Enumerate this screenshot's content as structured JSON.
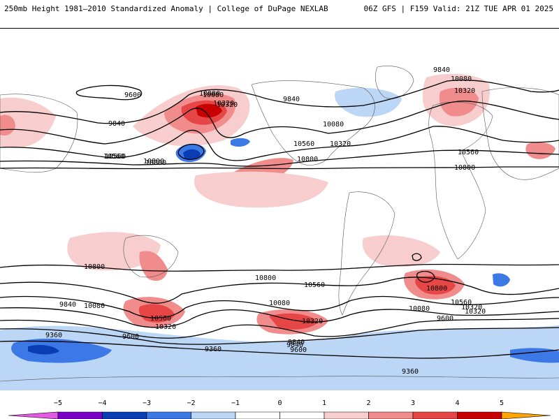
{
  "header": {
    "left_title": "250mb Height 1981–2010 Standardized Anomaly | College of DuPage NEXLAB",
    "right_title": "06Z GFS | F159 Valid: 21Z TUE APR 01 2025"
  },
  "colors": {
    "neg5": "#e15ae1",
    "neg4": "#7a00c8",
    "neg3": "#0a3cb4",
    "neg2": "#3c78e6",
    "neg1": "#bcd6f5",
    "pos1": "#f7cdcd",
    "pos2": "#f08c8c",
    "pos3": "#e64646",
    "pos4": "#c80000",
    "pos5": "#ffa500",
    "contour": "#000000",
    "land_border": "#555555"
  },
  "colorbar": {
    "tick_labels": [
      "−5",
      "−4",
      "−3",
      "−2",
      "−1",
      "0",
      "1",
      "2",
      "3",
      "4",
      "5"
    ]
  },
  "contour_labels": [
    {
      "text": "9840"
    },
    {
      "text": "10080"
    },
    {
      "text": "10320"
    },
    {
      "text": "9600"
    },
    {
      "text": "9840"
    },
    {
      "text": "10080"
    },
    {
      "text": "10320"
    },
    {
      "text": "10560"
    },
    {
      "text": "10800"
    },
    {
      "text": "9840"
    },
    {
      "text": "10080"
    },
    {
      "text": "10560"
    },
    {
      "text": "10320"
    },
    {
      "text": "10560"
    },
    {
      "text": "10800"
    },
    {
      "text": "10080"
    },
    {
      "text": "10320"
    },
    {
      "text": "10560"
    },
    {
      "text": "10800"
    },
    {
      "text": "10800"
    },
    {
      "text": "10560"
    },
    {
      "text": "10800"
    },
    {
      "text": "10560"
    },
    {
      "text": "10320"
    },
    {
      "text": "10080"
    },
    {
      "text": "9840"
    },
    {
      "text": "9600"
    },
    {
      "text": "10800"
    },
    {
      "text": "10080"
    },
    {
      "text": "9840"
    },
    {
      "text": "10560"
    },
    {
      "text": "10320"
    },
    {
      "text": "9600"
    },
    {
      "text": "9360"
    },
    {
      "text": "10320"
    },
    {
      "text": "9840"
    },
    {
      "text": "9600"
    },
    {
      "text": "9360"
    },
    {
      "text": "9360"
    },
    {
      "text": "10080"
    },
    {
      "text": "10320"
    },
    {
      "text": "10800"
    }
  ]
}
